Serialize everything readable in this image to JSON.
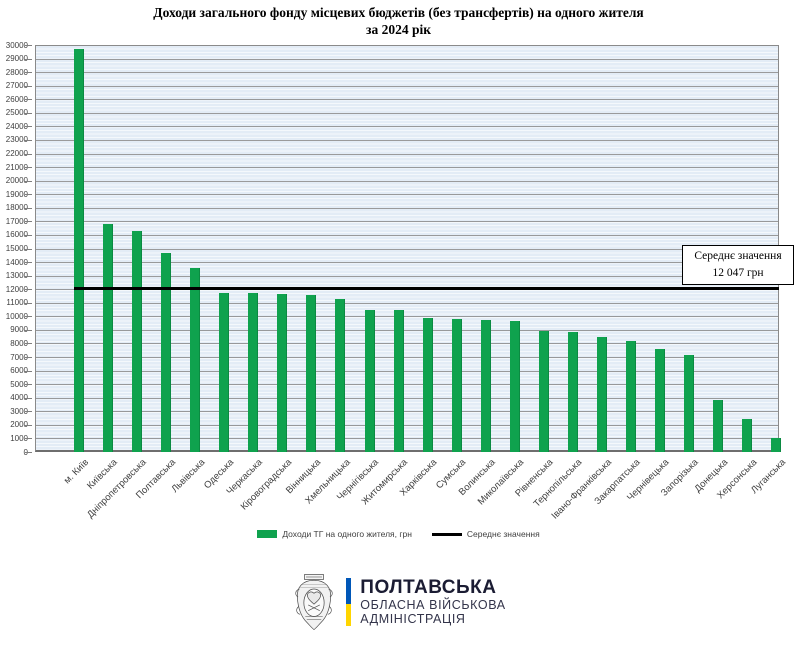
{
  "title": {
    "line1": "Доходи загального фонду місцевих бюджетів (без трансфертів) на одного жителя",
    "line2": "за 2024 рік"
  },
  "chart_data": {
    "type": "bar",
    "title": "Доходи загального фонду місцевих бюджетів (без трансфертів) на одного жителя за 2024 рік",
    "categories": [
      "м. Київ",
      "Київська",
      "Дніпропетровська",
      "Полтавська",
      "Львівська",
      "Одеська",
      "Черкаська",
      "Кіровоградська",
      "Вінницька",
      "Хмельницька",
      "Чернігівська",
      "Житомирська",
      "Харківська",
      "Сумська",
      "Волинська",
      "Миколаївська",
      "Рівненська",
      "Тернопільська",
      "Івано-Франківська",
      "Закарпатська",
      "Чернівецька",
      "Запорізька",
      "Донецька",
      "Херсонська",
      "Луганська"
    ],
    "values": [
      29700,
      16800,
      16300,
      14700,
      13550,
      11750,
      11700,
      11650,
      11600,
      11300,
      10500,
      10450,
      9850,
      9800,
      9750,
      9650,
      8950,
      8850,
      8500,
      8150,
      7600,
      7150,
      3800,
      2400,
      1050
    ],
    "series_name": "Доходи ТГ на одного жителя, грн",
    "average_value": 12047,
    "ylim": [
      0,
      30000
    ],
    "ytick_step": 1000,
    "xlabel": "",
    "ylabel": "",
    "grid": true,
    "legend_position": "bottom",
    "bar_color": "#0fa24e",
    "average_line_color": "#000000"
  },
  "annotation": {
    "line1": "Середнє значення",
    "line2": "12 047 грн"
  },
  "legend": {
    "bars_label": "Доходи ТГ на одного жителя, грн",
    "line_label": "Середнє значення"
  },
  "footer": {
    "org_name": "ПОЛТАВСЬКА",
    "org_line2": "ОБЛАСНА ВІЙСЬКОВА",
    "org_line3": "АДМІНІСТРАЦІЯ"
  }
}
